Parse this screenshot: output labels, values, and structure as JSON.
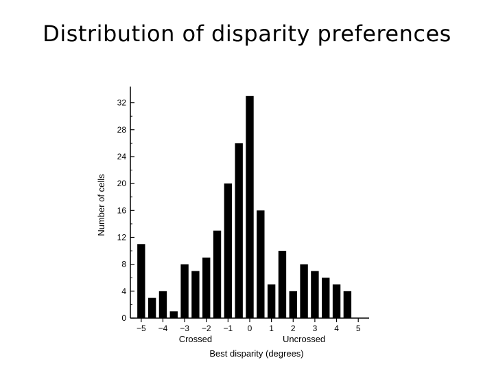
{
  "slide": {
    "title": "Distribution of disparity preferences"
  },
  "chart_data": {
    "type": "bar",
    "title": "Distribution of disparity preferences",
    "xlabel": "Best disparity (degrees)",
    "ylabel": "Number of cells",
    "x_region_labels": [
      "Crossed",
      "Uncrossed"
    ],
    "x_ticks": [
      -5,
      -4,
      -3,
      -2,
      -1,
      0,
      1,
      2,
      3,
      4,
      5
    ],
    "x_tick_labels": [
      "−5",
      "−4",
      "−3",
      "−2",
      "−1",
      "0",
      "1",
      "2",
      "3",
      "4",
      "5"
    ],
    "y_ticks": [
      0,
      4,
      8,
      12,
      16,
      20,
      24,
      28,
      32
    ],
    "xlim": [
      -5.5,
      5.5
    ],
    "ylim": [
      0,
      34
    ],
    "grid": false,
    "bin_width": 0.5,
    "x": [
      -5,
      -4.5,
      -4,
      -3.5,
      -3,
      -2.5,
      -2,
      -1.5,
      -1,
      -0.5,
      0,
      0.5,
      1,
      1.5,
      2,
      2.5,
      3,
      3.5,
      4,
      4.5,
      5
    ],
    "values": [
      11,
      3,
      4,
      1,
      8,
      7,
      9,
      13,
      20,
      26,
      33,
      16,
      5,
      10,
      4,
      8,
      7,
      6,
      5,
      4,
      0
    ],
    "bar_color": "#000000"
  }
}
